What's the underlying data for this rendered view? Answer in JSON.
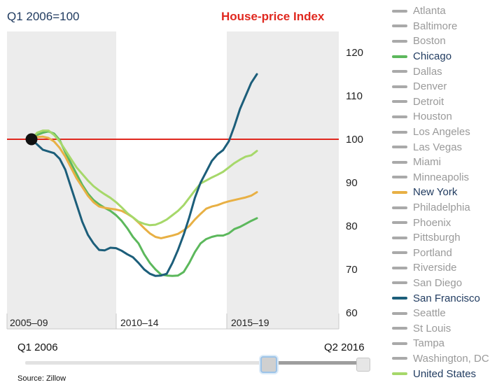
{
  "header": {
    "subtitle": "Q1 2006=100",
    "title": "House-price Index"
  },
  "chart_data": {
    "type": "line",
    "title": "House-price Index",
    "subtitle": "Q1 2006=100",
    "x_start": "Q1 2006",
    "x_end": "Q2 2016",
    "y_axis_position": "right",
    "ylim": [
      60,
      120
    ],
    "y_ticks": [
      60,
      70,
      80,
      90,
      100,
      110,
      120
    ],
    "period_labels": [
      "2005–09",
      "2010–14",
      "2015–19"
    ],
    "reference_line": {
      "value": 100,
      "color": "#e0281f"
    },
    "start_marker": {
      "x": "Q1 2006",
      "y": 100
    },
    "grid": false,
    "legend_position": "right",
    "series": [
      {
        "name": "Chicago",
        "color": "#5cb85c",
        "points": [
          [
            2006.0,
            100
          ],
          [
            2006.25,
            101
          ],
          [
            2006.5,
            101.5
          ],
          [
            2006.75,
            101.8
          ],
          [
            2007.0,
            101.3
          ],
          [
            2007.25,
            99.8
          ],
          [
            2007.5,
            97
          ],
          [
            2007.75,
            94.5
          ],
          [
            2008.0,
            92
          ],
          [
            2008.25,
            89.5
          ],
          [
            2008.5,
            87.5
          ],
          [
            2008.75,
            86
          ],
          [
            2009.0,
            85
          ],
          [
            2009.25,
            84.2
          ],
          [
            2009.5,
            83.5
          ],
          [
            2009.75,
            82.5
          ],
          [
            2010.0,
            81.2
          ],
          [
            2010.25,
            79.5
          ],
          [
            2010.5,
            77.5
          ],
          [
            2010.75,
            76
          ],
          [
            2011.0,
            73.5
          ],
          [
            2011.25,
            71.5
          ],
          [
            2011.5,
            70
          ],
          [
            2011.75,
            68.8
          ],
          [
            2012.0,
            68.6
          ],
          [
            2012.25,
            68.5
          ],
          [
            2012.5,
            68.6
          ],
          [
            2012.75,
            69.4
          ],
          [
            2013.0,
            71.5
          ],
          [
            2013.25,
            74
          ],
          [
            2013.5,
            76
          ],
          [
            2013.75,
            77
          ],
          [
            2014.0,
            77.5
          ],
          [
            2014.25,
            77.8
          ],
          [
            2014.5,
            77.8
          ],
          [
            2014.75,
            78.3
          ],
          [
            2015.0,
            79.3
          ],
          [
            2015.25,
            79.8
          ],
          [
            2015.5,
            80.5
          ],
          [
            2015.75,
            81.2
          ],
          [
            2016.0,
            81.8
          ]
        ]
      },
      {
        "name": "New York",
        "color": "#e8b044",
        "points": [
          [
            2006.0,
            100
          ],
          [
            2006.25,
            100.5
          ],
          [
            2006.5,
            100.6
          ],
          [
            2006.75,
            100.3
          ],
          [
            2007.0,
            99.5
          ],
          [
            2007.25,
            98
          ],
          [
            2007.5,
            96
          ],
          [
            2007.75,
            93.5
          ],
          [
            2008.0,
            91
          ],
          [
            2008.25,
            89
          ],
          [
            2008.5,
            87
          ],
          [
            2008.75,
            85.5
          ],
          [
            2009.0,
            84.5
          ],
          [
            2009.25,
            84.2
          ],
          [
            2009.5,
            84
          ],
          [
            2009.75,
            83.8
          ],
          [
            2010.0,
            83.5
          ],
          [
            2010.25,
            82.8
          ],
          [
            2010.5,
            82
          ],
          [
            2010.75,
            80.8
          ],
          [
            2011.0,
            79.5
          ],
          [
            2011.25,
            78.3
          ],
          [
            2011.5,
            77.5
          ],
          [
            2011.75,
            77.2
          ],
          [
            2012.0,
            77.5
          ],
          [
            2012.25,
            77.8
          ],
          [
            2012.5,
            78.2
          ],
          [
            2012.75,
            79
          ],
          [
            2013.0,
            80
          ],
          [
            2013.25,
            81.5
          ],
          [
            2013.5,
            82.8
          ],
          [
            2013.75,
            84
          ],
          [
            2014.0,
            84.5
          ],
          [
            2014.25,
            84.8
          ],
          [
            2014.5,
            85.3
          ],
          [
            2014.75,
            85.7
          ],
          [
            2015.0,
            86
          ],
          [
            2015.25,
            86.3
          ],
          [
            2015.5,
            86.6
          ],
          [
            2015.75,
            87
          ],
          [
            2016.0,
            87.8
          ]
        ]
      },
      {
        "name": "United States",
        "color": "#a6d86a",
        "points": [
          [
            2006.0,
            100
          ],
          [
            2006.25,
            101.5
          ],
          [
            2006.5,
            102
          ],
          [
            2006.75,
            102
          ],
          [
            2007.0,
            101
          ],
          [
            2007.25,
            99.5
          ],
          [
            2007.5,
            97.5
          ],
          [
            2007.75,
            95.5
          ],
          [
            2008.0,
            93.5
          ],
          [
            2008.25,
            92
          ],
          [
            2008.5,
            90.5
          ],
          [
            2008.75,
            89.2
          ],
          [
            2009.0,
            88.2
          ],
          [
            2009.25,
            87.3
          ],
          [
            2009.5,
            86.5
          ],
          [
            2009.75,
            85.5
          ],
          [
            2010.0,
            84.3
          ],
          [
            2010.25,
            83
          ],
          [
            2010.5,
            82
          ],
          [
            2010.75,
            81
          ],
          [
            2011.0,
            80.5
          ],
          [
            2011.25,
            80.2
          ],
          [
            2011.5,
            80.3
          ],
          [
            2011.75,
            80.8
          ],
          [
            2012.0,
            81.5
          ],
          [
            2012.25,
            82.5
          ],
          [
            2012.5,
            83.5
          ],
          [
            2012.75,
            84.8
          ],
          [
            2013.0,
            86.5
          ],
          [
            2013.25,
            88.2
          ],
          [
            2013.5,
            89.8
          ],
          [
            2013.75,
            90.5
          ],
          [
            2014.0,
            91.2
          ],
          [
            2014.25,
            91.8
          ],
          [
            2014.5,
            92.5
          ],
          [
            2014.75,
            93.5
          ],
          [
            2015.0,
            94.5
          ],
          [
            2015.25,
            95.3
          ],
          [
            2015.5,
            96
          ],
          [
            2015.75,
            96.3
          ],
          [
            2016.0,
            97.3
          ]
        ]
      },
      {
        "name": "San Francisco",
        "color": "#1c5e7a",
        "points": [
          [
            2006.0,
            100
          ],
          [
            2006.25,
            98.8
          ],
          [
            2006.5,
            97.6
          ],
          [
            2006.75,
            97.2
          ],
          [
            2007.0,
            96.8
          ],
          [
            2007.25,
            95.5
          ],
          [
            2007.5,
            93
          ],
          [
            2007.75,
            89
          ],
          [
            2008.0,
            85
          ],
          [
            2008.25,
            81
          ],
          [
            2008.5,
            78
          ],
          [
            2008.75,
            76
          ],
          [
            2009.0,
            74.5
          ],
          [
            2009.25,
            74.4
          ],
          [
            2009.5,
            75
          ],
          [
            2009.75,
            74.9
          ],
          [
            2010.0,
            74.3
          ],
          [
            2010.25,
            73.5
          ],
          [
            2010.5,
            72.8
          ],
          [
            2010.75,
            71.5
          ],
          [
            2011.0,
            70
          ],
          [
            2011.25,
            69
          ],
          [
            2011.5,
            68.5
          ],
          [
            2011.75,
            68.6
          ],
          [
            2012.0,
            69
          ],
          [
            2012.25,
            71.5
          ],
          [
            2012.5,
            74.5
          ],
          [
            2012.75,
            78
          ],
          [
            2013.0,
            82
          ],
          [
            2013.25,
            86.5
          ],
          [
            2013.5,
            90
          ],
          [
            2013.75,
            92.5
          ],
          [
            2014.0,
            95
          ],
          [
            2014.25,
            96.5
          ],
          [
            2014.5,
            97.5
          ],
          [
            2014.75,
            99.5
          ],
          [
            2015.0,
            103
          ],
          [
            2015.25,
            107
          ],
          [
            2015.5,
            110
          ],
          [
            2015.75,
            113
          ],
          [
            2016.0,
            115
          ]
        ]
      }
    ]
  },
  "legend": [
    {
      "label": "Atlanta",
      "active": false
    },
    {
      "label": "Baltimore",
      "active": false
    },
    {
      "label": "Boston",
      "active": false
    },
    {
      "label": "Chicago",
      "active": true,
      "color": "#5cb85c"
    },
    {
      "label": "Dallas",
      "active": false
    },
    {
      "label": "Denver",
      "active": false
    },
    {
      "label": "Detroit",
      "active": false
    },
    {
      "label": "Houston",
      "active": false
    },
    {
      "label": "Los Angeles",
      "active": false
    },
    {
      "label": "Las Vegas",
      "active": false
    },
    {
      "label": "Miami",
      "active": false
    },
    {
      "label": "Minneapolis",
      "active": false
    },
    {
      "label": "New York",
      "active": true,
      "color": "#e8b044"
    },
    {
      "label": "Philadelphia",
      "active": false
    },
    {
      "label": "Phoenix",
      "active": false
    },
    {
      "label": "Pittsburgh",
      "active": false
    },
    {
      "label": "Portland",
      "active": false
    },
    {
      "label": "Riverside",
      "active": false
    },
    {
      "label": "San Diego",
      "active": false
    },
    {
      "label": "San Francisco",
      "active": true,
      "color": "#1c5e7a"
    },
    {
      "label": "Seattle",
      "active": false
    },
    {
      "label": "St Louis",
      "active": false
    },
    {
      "label": "Tampa",
      "active": false
    },
    {
      "label": "Washington, DC",
      "active": false
    },
    {
      "label": "United States",
      "active": true,
      "color": "#a6d86a"
    }
  ],
  "colors": {
    "inactive_swatch": "#a9a9a9",
    "inactive_text": "#9a9a9a",
    "active_text": "#1f3a5f",
    "band": "#ececec"
  },
  "slider": {
    "start_label": "Q1 2006",
    "end_label": "Q2 2016"
  },
  "source": "Source: Zillow"
}
